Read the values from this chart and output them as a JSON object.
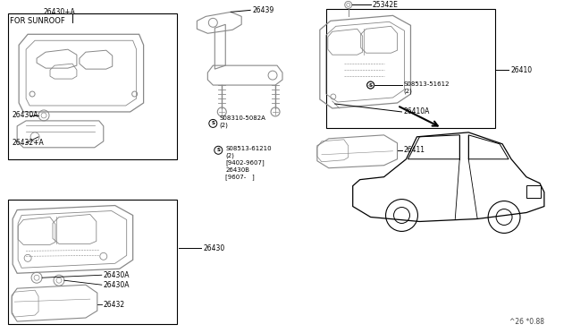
{
  "bg_color": "#ffffff",
  "fig_width": 6.4,
  "fig_height": 3.72,
  "dpi": 100,
  "watermark": "^26 *0.88",
  "labels": {
    "for_sunroof": "FOR SUNROOF",
    "26430_A_top": "26430+A",
    "26430A_1": "26430A",
    "26432_A": "26432+A",
    "26439": "26439",
    "08310_5082A": "S08310-5082A\n(2)",
    "08513_61210": "S08513-61210\n(2)\n[9402-9607]\n26430B\n[9607-   ]",
    "25342E": "25342E",
    "08513_51612": "S08513-51612\n(2)",
    "26410A": "26410A",
    "26410": "26410",
    "26411": "26411",
    "26430": "26430",
    "26430A_2a": "26430A",
    "26430A_2b": "26430A",
    "26432": "26432"
  },
  "lc": "#000000",
  "sc": "#888888"
}
